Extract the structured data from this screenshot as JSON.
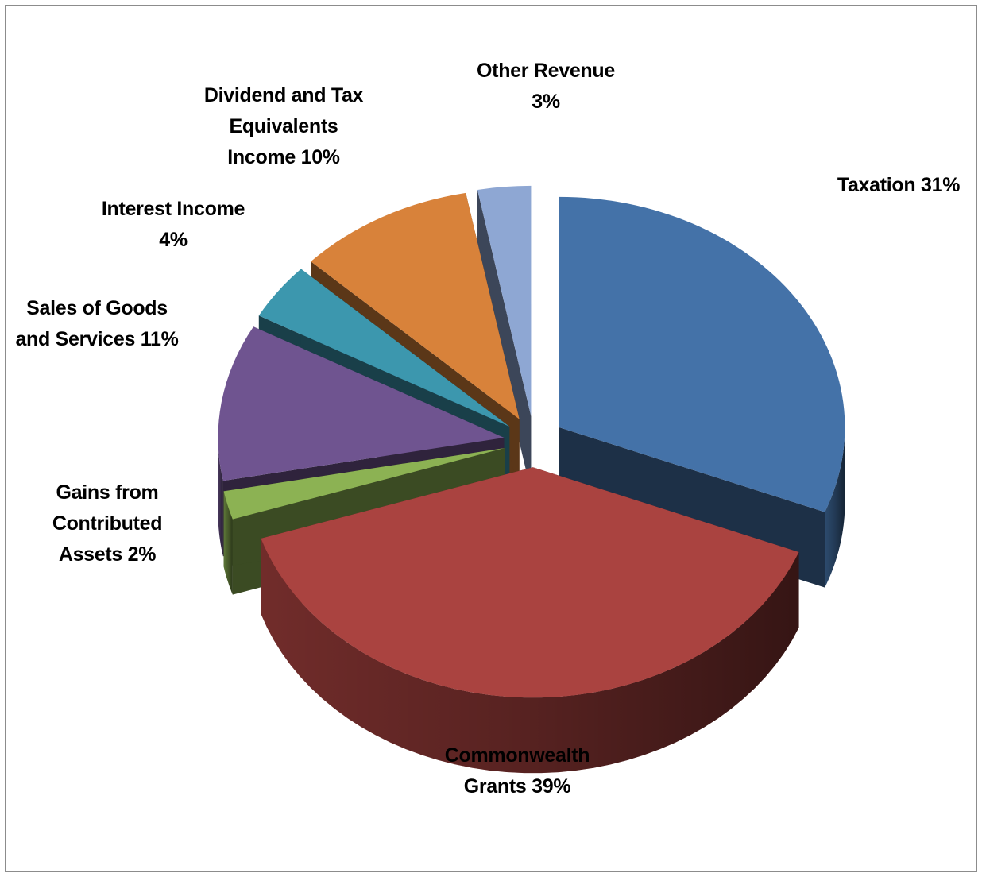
{
  "chart_data": {
    "type": "pie",
    "title": "",
    "style": "3d-exploded",
    "legend": "none",
    "slices": [
      {
        "name": "Taxation",
        "value": 31,
        "label": "Taxation 31%",
        "color": "#4472A8"
      },
      {
        "name": "Commonwealth Grants",
        "value": 39,
        "label": "Commonwealth\nGrants 39%",
        "color": "#AA4340"
      },
      {
        "name": "Gains from Contributed Assets",
        "value": 2,
        "label": "Gains from\nContributed\nAssets 2%",
        "color": "#8CB253"
      },
      {
        "name": "Sales of Goods and Services",
        "value": 11,
        "label": "Sales of Goods\nand Services 11%",
        "color": "#6F5490"
      },
      {
        "name": "Interest Income",
        "value": 4,
        "label": "Interest Income\n4%",
        "color": "#3C97AE"
      },
      {
        "name": "Dividend and Tax Equivalents Income",
        "value": 10,
        "label": "Dividend and Tax\nEquivalents\nIncome 10%",
        "color": "#D8823A"
      },
      {
        "name": "Other Revenue",
        "value": 3,
        "label": "Other Revenue\n3%",
        "color": "#8EA7D3"
      }
    ]
  }
}
